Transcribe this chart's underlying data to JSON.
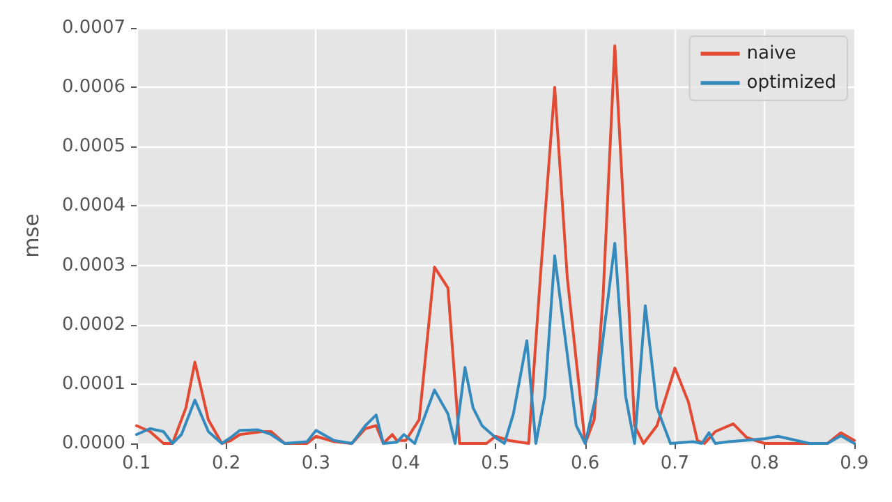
{
  "chart_data": {
    "type": "line",
    "ylabel": "mse",
    "xlim": [
      0.1,
      0.9
    ],
    "xticks": [
      0.1,
      0.2,
      0.3,
      0.4,
      0.5,
      0.6,
      0.7,
      0.8,
      0.9
    ],
    "ylim": [
      0,
      0.0007
    ],
    "yticks": [
      {
        "value": 0,
        "label": "0.0000"
      },
      {
        "value": 0.0001,
        "label": "0.0001"
      },
      {
        "value": 0.0002,
        "label": "0.0002"
      },
      {
        "value": 0.0003,
        "label": "0.0003"
      },
      {
        "value": 0.0004,
        "label": "0.0004"
      },
      {
        "value": 0.0005,
        "label": "0.0005"
      },
      {
        "value": 0.0006,
        "label": "0.0006"
      },
      {
        "value": 0.0007,
        "label": "0.0007"
      }
    ],
    "grid": true,
    "legend": "top right",
    "marker": "none",
    "line_style": "solid",
    "series": [
      {
        "name": "naive",
        "color": "#e24a33",
        "x": [
          0.1,
          0.115,
          0.13,
          0.14,
          0.155,
          0.165,
          0.18,
          0.195,
          0.205,
          0.215,
          0.24,
          0.25,
          0.265,
          0.29,
          0.3,
          0.32,
          0.34,
          0.355,
          0.367,
          0.375,
          0.385,
          0.39,
          0.4,
          0.415,
          0.432,
          0.447,
          0.46,
          0.49,
          0.5,
          0.515,
          0.537,
          0.55,
          0.566,
          0.58,
          0.6,
          0.61,
          0.62,
          0.633,
          0.648,
          0.655,
          0.665,
          0.68,
          0.7,
          0.715,
          0.725,
          0.733,
          0.745,
          0.765,
          0.78,
          0.8,
          0.85,
          0.87,
          0.885,
          0.9
        ],
        "values": [
          3e-05,
          2e-05,
          0,
          0,
          6e-05,
          0.000137,
          4e-05,
          0,
          5e-06,
          1.5e-05,
          2e-05,
          2e-05,
          0,
          0,
          1.2e-05,
          3e-06,
          0,
          2.5e-05,
          3e-05,
          0,
          1.5e-05,
          5e-06,
          5e-06,
          4e-05,
          0.000297,
          0.000262,
          0,
          0,
          1.2e-05,
          5e-06,
          0,
          0.00028,
          0.0006,
          0.00028,
          0,
          4e-05,
          0.00025,
          0.00067,
          0.00025,
          3e-05,
          0,
          3e-05,
          0.000127,
          7e-05,
          5e-06,
          0,
          2e-05,
          3.3e-05,
          1e-05,
          0,
          0,
          0,
          1.8e-05,
          5e-06
        ]
      },
      {
        "name": "optimized",
        "color": "#348abd",
        "x": [
          0.1,
          0.115,
          0.13,
          0.14,
          0.15,
          0.165,
          0.18,
          0.195,
          0.205,
          0.215,
          0.235,
          0.25,
          0.265,
          0.29,
          0.3,
          0.32,
          0.34,
          0.355,
          0.367,
          0.375,
          0.39,
          0.398,
          0.41,
          0.432,
          0.447,
          0.455,
          0.466,
          0.475,
          0.485,
          0.5,
          0.51,
          0.52,
          0.535,
          0.545,
          0.555,
          0.566,
          0.58,
          0.59,
          0.6,
          0.612,
          0.633,
          0.645,
          0.655,
          0.667,
          0.68,
          0.695,
          0.72,
          0.73,
          0.738,
          0.745,
          0.76,
          0.8,
          0.815,
          0.85,
          0.87,
          0.885,
          0.9
        ],
        "values": [
          1.5e-05,
          2.5e-05,
          2e-05,
          0,
          1.5e-05,
          7.3e-05,
          2e-05,
          0,
          1e-05,
          2.2e-05,
          2.3e-05,
          1.5e-05,
          0,
          3e-06,
          2.2e-05,
          5e-06,
          0,
          3e-05,
          4.8e-05,
          0,
          2e-06,
          1.5e-05,
          0,
          9e-05,
          5e-05,
          0,
          0.000128,
          6e-05,
          3e-05,
          1e-05,
          0,
          5e-05,
          0.000173,
          0,
          8e-05,
          0.000316,
          0.00015,
          3e-05,
          0,
          8e-05,
          0.000337,
          8e-05,
          0,
          0.000232,
          6e-05,
          0,
          3e-06,
          0,
          1.8e-05,
          0,
          3e-06,
          8e-06,
          1.2e-05,
          0,
          0,
          1.3e-05,
          0
        ]
      }
    ]
  }
}
